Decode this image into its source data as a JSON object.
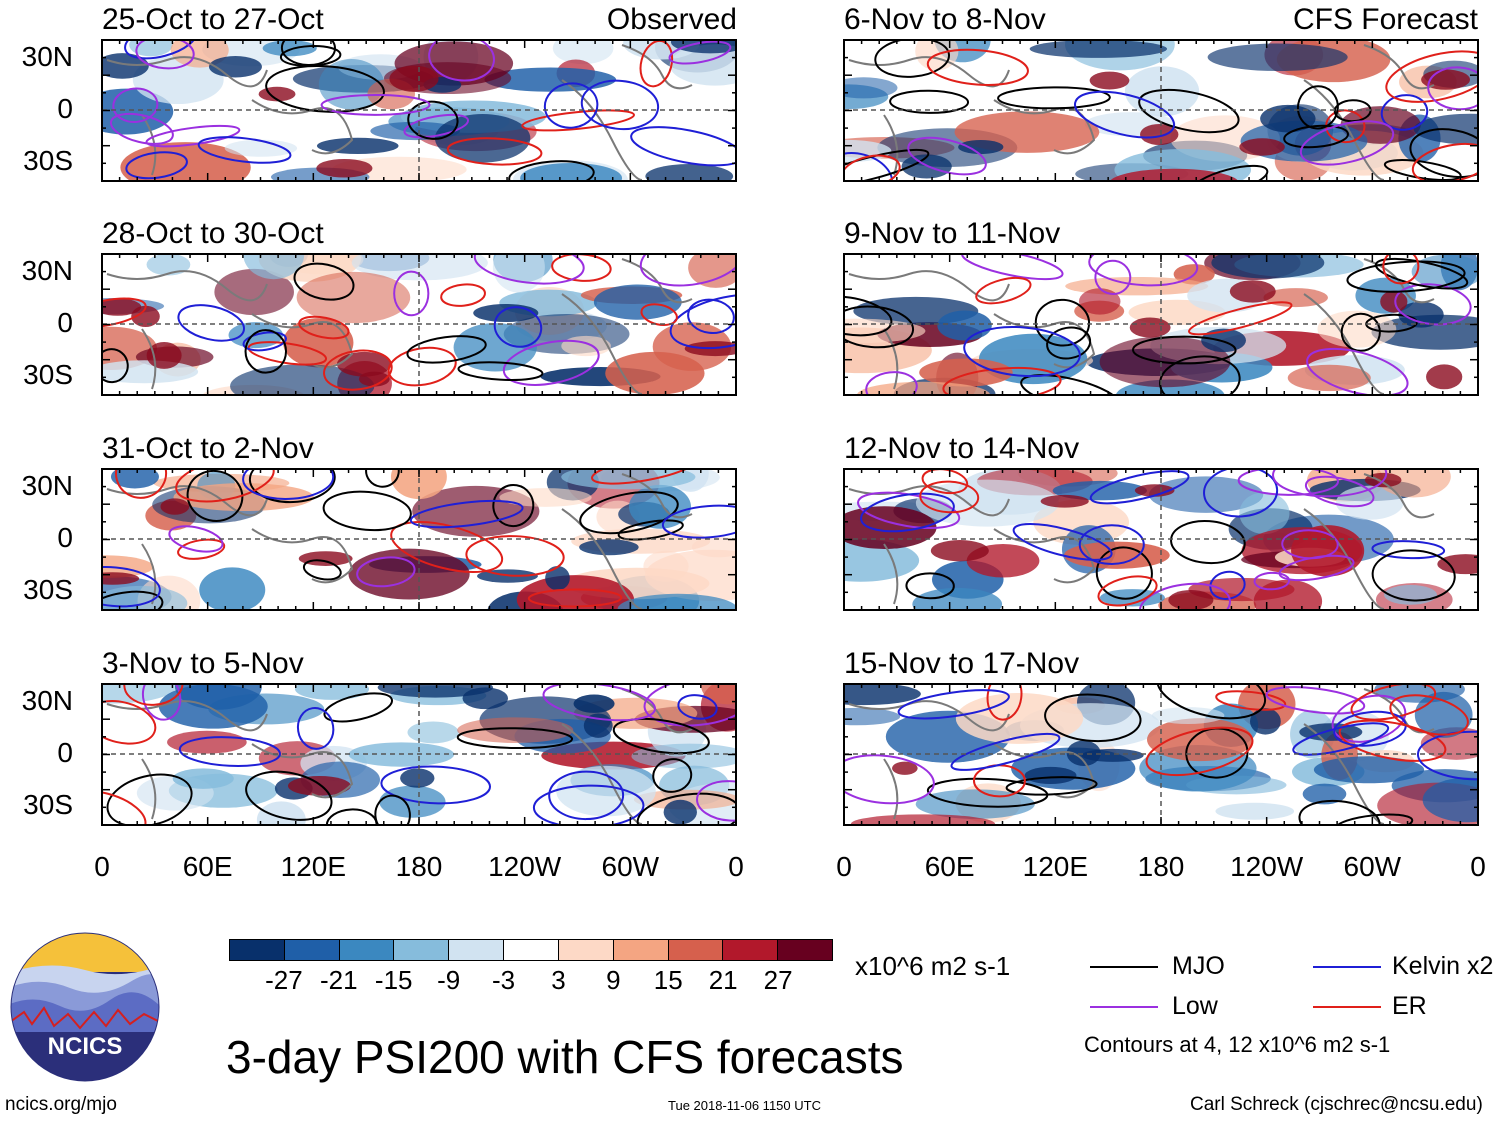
{
  "panels": {
    "observed_tag": "Observed",
    "forecast_tag": "CFS Forecast",
    "left": [
      {
        "date": "25-Oct to 27-Oct"
      },
      {
        "date": "28-Oct to 30-Oct"
      },
      {
        "date": "31-Oct to 2-Nov"
      },
      {
        "date": "3-Nov to 5-Nov"
      }
    ],
    "right": [
      {
        "date": "6-Nov to 8-Nov"
      },
      {
        "date": "9-Nov to 11-Nov"
      },
      {
        "date": "12-Nov to 14-Nov"
      },
      {
        "date": "15-Nov to 17-Nov"
      }
    ]
  },
  "lat_labels": [
    "30N",
    "0",
    "30S"
  ],
  "lon_labels": [
    "0",
    "60E",
    "120E",
    "180",
    "120W",
    "60W",
    "0"
  ],
  "colorbar": {
    "ticks": [
      "-27",
      "-21",
      "-15",
      "-9",
      "-3",
      "3",
      "9",
      "15",
      "21",
      "27"
    ],
    "colors": [
      "#08306b",
      "#1f5fa8",
      "#3b88c0",
      "#86bcdc",
      "#d1e3f1",
      "#ffffff",
      "#fdd9c6",
      "#f4a582",
      "#d6604d",
      "#b2182b",
      "#67001f"
    ],
    "units": "x10^6 m2 s-1"
  },
  "legend": {
    "mjo": {
      "label": "MJO",
      "color": "#000000"
    },
    "kelvin": {
      "label": "Kelvin x2",
      "color": "#1f1fd6"
    },
    "low": {
      "label": "Low",
      "color": "#9b30e0"
    },
    "er": {
      "label": "ER",
      "color": "#e0201a"
    },
    "contours_note": "Contours at 4, 12 x10^6 m2 s-1"
  },
  "title": "3-day PSI200 with CFS forecasts",
  "footer": {
    "site": "ncics.org/mjo",
    "timestamp": "Tue 2018-11-06 1150 UTC",
    "author": "Carl Schreck (cjschrec@ncsu.edu)"
  },
  "logo": {
    "text": "NCICS"
  }
}
